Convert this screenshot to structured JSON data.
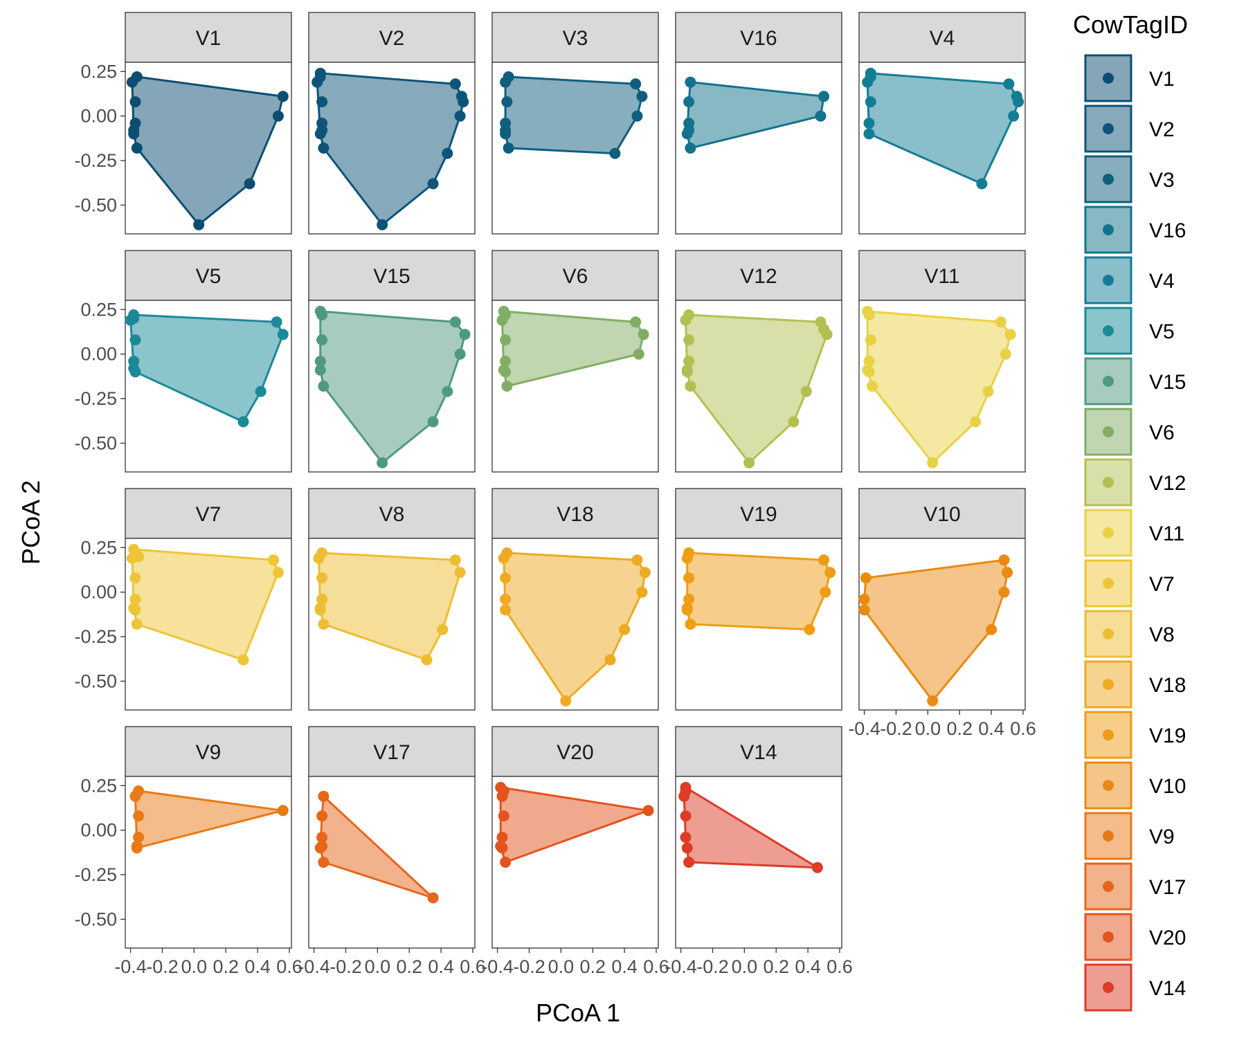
{
  "chart_data": {
    "type": "scatter",
    "subtype": "faceted convex hull scatter (PCoA ordination)",
    "xlabel": "PCoA 1",
    "ylabel": "PCoA 2",
    "xlim": [
      -0.42,
      0.6
    ],
    "ylim": [
      -0.65,
      0.29
    ],
    "x_ticks": [
      -0.4,
      -0.2,
      0.0,
      0.2,
      0.4,
      0.6
    ],
    "x_tick_labels": [
      "-0.4",
      "-0.2",
      "0.0",
      "0.2",
      "0.4",
      "0.6"
    ],
    "y_ticks": [
      0.25,
      0.0,
      -0.25,
      -0.5
    ],
    "y_tick_labels": [
      "0.25",
      "0.00",
      "-0.25",
      "-0.50"
    ],
    "grid": false,
    "legend": {
      "title": "CowTagID",
      "position": "right",
      "items": [
        "V1",
        "V2",
        "V3",
        "V16",
        "V4",
        "V5",
        "V15",
        "V6",
        "V12",
        "V11",
        "V7",
        "V8",
        "V18",
        "V19",
        "V10",
        "V9",
        "V17",
        "V20",
        "V14"
      ]
    },
    "facets": [
      {
        "name": "V1",
        "color": "#0b4e72",
        "points": [
          [
            -0.39,
            0.19
          ],
          [
            -0.36,
            0.22
          ],
          [
            -0.37,
            0.08
          ],
          [
            -0.37,
            -0.04
          ],
          [
            -0.38,
            -0.08
          ],
          [
            -0.38,
            -0.1
          ],
          [
            -0.36,
            -0.18
          ],
          [
            0.03,
            -0.61
          ],
          [
            0.35,
            -0.38
          ],
          [
            0.53,
            0.0
          ],
          [
            0.56,
            0.11
          ]
        ]
      },
      {
        "name": "V2",
        "color": "#0d5478",
        "points": [
          [
            -0.38,
            0.19
          ],
          [
            -0.36,
            0.24
          ],
          [
            -0.36,
            0.22
          ],
          [
            -0.35,
            0.08
          ],
          [
            -0.35,
            -0.04
          ],
          [
            -0.35,
            -0.08
          ],
          [
            -0.36,
            -0.1
          ],
          [
            -0.34,
            -0.18
          ],
          [
            0.03,
            -0.61
          ],
          [
            0.35,
            -0.38
          ],
          [
            0.44,
            -0.21
          ],
          [
            0.52,
            0.0
          ],
          [
            0.54,
            0.08
          ],
          [
            0.53,
            0.11
          ],
          [
            0.49,
            0.18
          ]
        ]
      },
      {
        "name": "V3",
        "color": "#0f5e7e",
        "points": [
          [
            -0.35,
            0.19
          ],
          [
            -0.33,
            0.22
          ],
          [
            -0.34,
            0.08
          ],
          [
            -0.35,
            -0.04
          ],
          [
            -0.35,
            -0.08
          ],
          [
            -0.35,
            -0.1
          ],
          [
            -0.33,
            -0.18
          ],
          [
            0.34,
            -0.21
          ],
          [
            0.48,
            0.0
          ],
          [
            0.51,
            0.11
          ],
          [
            0.47,
            0.18
          ]
        ]
      },
      {
        "name": "V16",
        "color": "#14728c",
        "points": [
          [
            -0.34,
            0.19
          ],
          [
            -0.35,
            0.08
          ],
          [
            -0.35,
            -0.04
          ],
          [
            -0.35,
            -0.08
          ],
          [
            -0.36,
            -0.1
          ],
          [
            -0.34,
            -0.18
          ],
          [
            0.48,
            0.0
          ],
          [
            0.5,
            0.11
          ]
        ]
      },
      {
        "name": "V4",
        "color": "#147d96",
        "points": [
          [
            -0.38,
            0.19
          ],
          [
            -0.36,
            0.24
          ],
          [
            -0.36,
            0.22
          ],
          [
            -0.36,
            0.08
          ],
          [
            -0.37,
            -0.04
          ],
          [
            -0.37,
            -0.1
          ],
          [
            0.34,
            -0.38
          ],
          [
            0.54,
            0.0
          ],
          [
            0.57,
            0.08
          ],
          [
            0.56,
            0.11
          ],
          [
            0.51,
            0.18
          ]
        ]
      },
      {
        "name": "V5",
        "color": "#1a8a99",
        "points": [
          [
            -0.4,
            0.19
          ],
          [
            -0.38,
            0.22
          ],
          [
            -0.38,
            0.2
          ],
          [
            -0.37,
            0.08
          ],
          [
            -0.38,
            -0.04
          ],
          [
            -0.38,
            -0.08
          ],
          [
            -0.37,
            -0.1
          ],
          [
            0.31,
            -0.38
          ],
          [
            0.42,
            -0.21
          ],
          [
            0.56,
            0.11
          ],
          [
            0.52,
            0.18
          ]
        ]
      },
      {
        "name": "V15",
        "color": "#4f9a7f",
        "points": [
          [
            -0.36,
            0.24
          ],
          [
            -0.35,
            0.22
          ],
          [
            -0.35,
            0.08
          ],
          [
            -0.36,
            -0.04
          ],
          [
            -0.36,
            -0.09
          ],
          [
            -0.34,
            -0.18
          ],
          [
            0.03,
            -0.61
          ],
          [
            0.35,
            -0.38
          ],
          [
            0.44,
            -0.21
          ],
          [
            0.52,
            0.0
          ],
          [
            0.55,
            0.11
          ],
          [
            0.49,
            0.18
          ]
        ]
      },
      {
        "name": "V6",
        "color": "#82ad64",
        "points": [
          [
            -0.36,
            0.24
          ],
          [
            -0.35,
            0.22
          ],
          [
            -0.37,
            0.19
          ],
          [
            -0.35,
            0.08
          ],
          [
            -0.35,
            -0.04
          ],
          [
            -0.36,
            -0.09
          ],
          [
            -0.35,
            -0.1
          ],
          [
            -0.34,
            -0.18
          ],
          [
            0.49,
            0.0
          ],
          [
            0.52,
            0.11
          ],
          [
            0.47,
            0.18
          ]
        ]
      },
      {
        "name": "V12",
        "color": "#b2c051",
        "points": [
          [
            -0.37,
            0.19
          ],
          [
            -0.35,
            0.22
          ],
          [
            -0.35,
            0.08
          ],
          [
            -0.35,
            -0.04
          ],
          [
            -0.36,
            -0.09
          ],
          [
            -0.36,
            -0.1
          ],
          [
            -0.34,
            -0.18
          ],
          [
            0.03,
            -0.61
          ],
          [
            0.31,
            -0.38
          ],
          [
            0.39,
            -0.21
          ],
          [
            0.52,
            0.11
          ],
          [
            0.5,
            0.14
          ],
          [
            0.48,
            0.18
          ]
        ]
      },
      {
        "name": "V11",
        "color": "#e9d145",
        "points": [
          [
            -0.38,
            0.24
          ],
          [
            -0.37,
            0.22
          ],
          [
            -0.36,
            0.08
          ],
          [
            -0.37,
            -0.04
          ],
          [
            -0.38,
            -0.09
          ],
          [
            -0.37,
            -0.1
          ],
          [
            -0.35,
            -0.18
          ],
          [
            0.03,
            -0.61
          ],
          [
            0.3,
            -0.38
          ],
          [
            0.38,
            -0.21
          ],
          [
            0.49,
            0.0
          ],
          [
            0.52,
            0.11
          ],
          [
            0.46,
            0.18
          ]
        ]
      },
      {
        "name": "V7",
        "color": "#edc536",
        "points": [
          [
            -0.38,
            0.24
          ],
          [
            -0.39,
            0.19
          ],
          [
            -0.35,
            0.2
          ],
          [
            -0.37,
            0.08
          ],
          [
            -0.37,
            -0.04
          ],
          [
            -0.38,
            -0.09
          ],
          [
            -0.37,
            -0.1
          ],
          [
            -0.36,
            -0.18
          ],
          [
            0.31,
            -0.38
          ],
          [
            0.5,
            0.18
          ],
          [
            0.53,
            0.11
          ]
        ]
      },
      {
        "name": "V8",
        "color": "#eebd33",
        "points": [
          [
            -0.37,
            0.19
          ],
          [
            -0.35,
            0.22
          ],
          [
            -0.35,
            0.08
          ],
          [
            -0.35,
            -0.04
          ],
          [
            -0.36,
            -0.09
          ],
          [
            -0.36,
            -0.1
          ],
          [
            -0.34,
            -0.18
          ],
          [
            0.31,
            -0.38
          ],
          [
            0.41,
            -0.21
          ],
          [
            0.52,
            0.11
          ],
          [
            0.49,
            0.18
          ]
        ]
      },
      {
        "name": "V18",
        "color": "#eeaa22",
        "points": [
          [
            -0.36,
            0.19
          ],
          [
            -0.34,
            0.22
          ],
          [
            -0.35,
            0.08
          ],
          [
            -0.35,
            -0.04
          ],
          [
            -0.35,
            -0.1
          ],
          [
            0.03,
            -0.61
          ],
          [
            0.31,
            -0.38
          ],
          [
            0.4,
            -0.21
          ],
          [
            0.51,
            0.0
          ],
          [
            0.53,
            0.11
          ],
          [
            0.48,
            0.18
          ]
        ]
      },
      {
        "name": "V19",
        "color": "#ee9d16",
        "points": [
          [
            -0.36,
            0.19
          ],
          [
            -0.35,
            0.22
          ],
          [
            -0.35,
            0.08
          ],
          [
            -0.35,
            -0.04
          ],
          [
            -0.36,
            -0.09
          ],
          [
            -0.36,
            -0.1
          ],
          [
            -0.34,
            -0.18
          ],
          [
            0.41,
            -0.21
          ],
          [
            0.51,
            0.0
          ],
          [
            0.54,
            0.11
          ],
          [
            0.5,
            0.18
          ]
        ]
      },
      {
        "name": "V10",
        "color": "#e98a12",
        "points": [
          [
            -0.39,
            0.08
          ],
          [
            -0.4,
            -0.04
          ],
          [
            -0.4,
            -0.1
          ],
          [
            0.03,
            -0.61
          ],
          [
            0.4,
            -0.21
          ],
          [
            0.48,
            0.0
          ],
          [
            0.5,
            0.11
          ],
          [
            0.48,
            0.18
          ]
        ]
      },
      {
        "name": "V9",
        "color": "#e87a16",
        "points": [
          [
            -0.37,
            0.19
          ],
          [
            -0.35,
            0.22
          ],
          [
            -0.35,
            0.08
          ],
          [
            -0.35,
            -0.04
          ],
          [
            -0.36,
            -0.09
          ],
          [
            -0.36,
            -0.1
          ],
          [
            0.56,
            0.11
          ]
        ]
      },
      {
        "name": "V17",
        "color": "#e6661a",
        "points": [
          [
            -0.34,
            0.19
          ],
          [
            -0.35,
            0.08
          ],
          [
            -0.35,
            -0.04
          ],
          [
            -0.35,
            -0.09
          ],
          [
            -0.36,
            -0.1
          ],
          [
            -0.34,
            -0.18
          ],
          [
            0.35,
            -0.38
          ]
        ]
      },
      {
        "name": "V20",
        "color": "#e3531d",
        "points": [
          [
            -0.38,
            0.24
          ],
          [
            -0.36,
            0.22
          ],
          [
            -0.37,
            0.19
          ],
          [
            -0.36,
            0.08
          ],
          [
            -0.37,
            -0.04
          ],
          [
            -0.38,
            -0.09
          ],
          [
            -0.37,
            -0.1
          ],
          [
            -0.35,
            -0.18
          ],
          [
            0.55,
            0.11
          ]
        ]
      },
      {
        "name": "V14",
        "color": "#dd3b26",
        "points": [
          [
            -0.37,
            0.24
          ],
          [
            -0.37,
            0.22
          ],
          [
            -0.38,
            0.19
          ],
          [
            -0.37,
            0.08
          ],
          [
            -0.37,
            -0.04
          ],
          [
            -0.36,
            -0.1
          ],
          [
            -0.35,
            -0.18
          ],
          [
            0.46,
            -0.21
          ]
        ]
      }
    ]
  }
}
